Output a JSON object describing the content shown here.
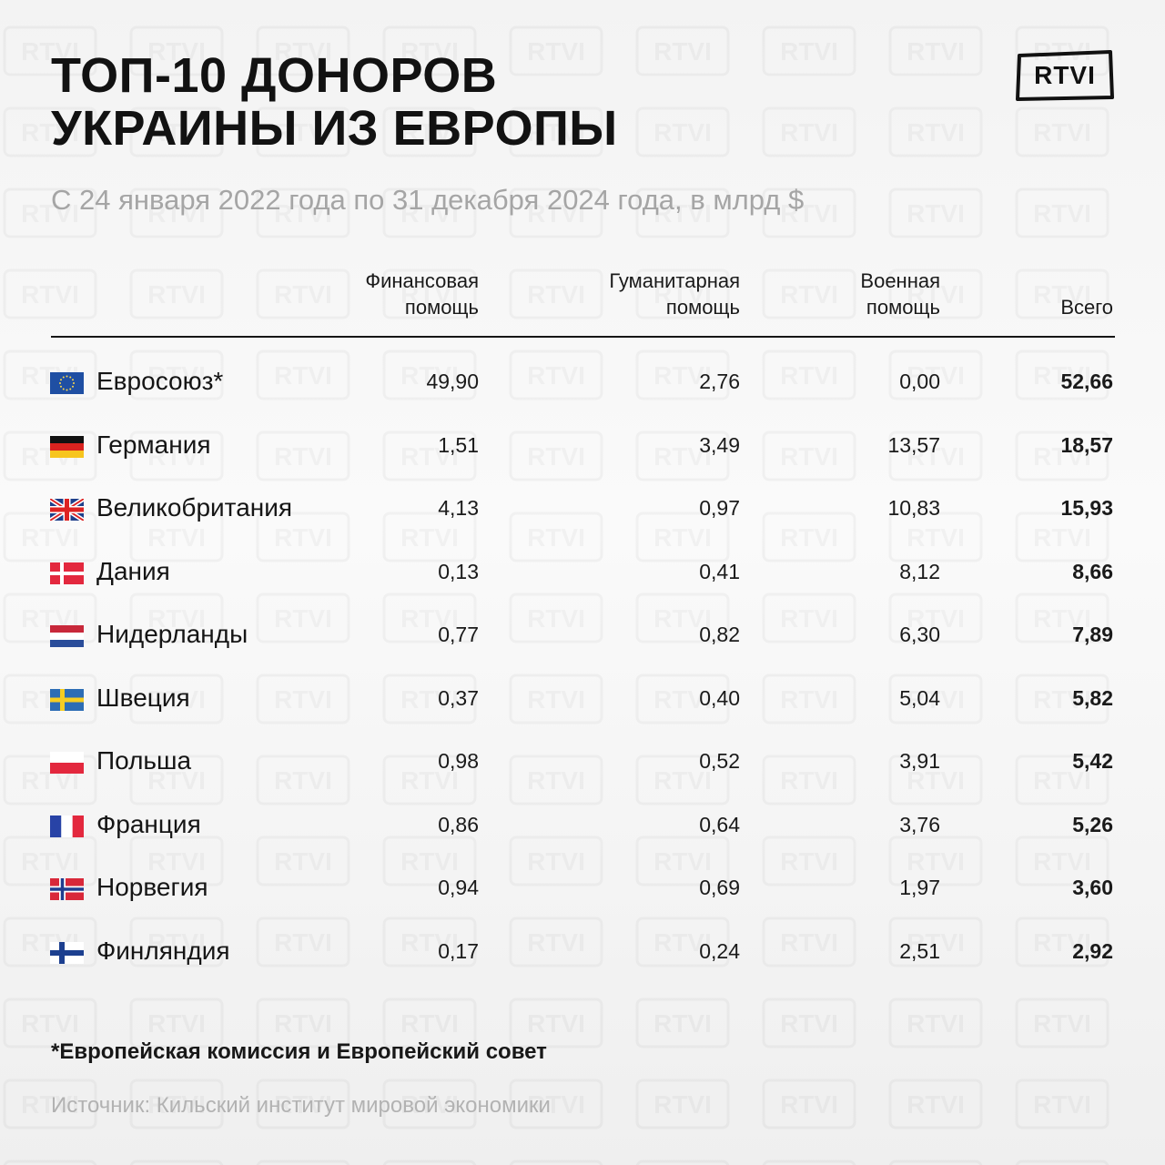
{
  "title": {
    "line1": "ТОП-10 ДОНОРОВ",
    "line2": "УКРАИНЫ ИЗ ЕВРОПЫ"
  },
  "subtitle": "С 24 января 2022 года по 31 декабря 2024 года, в млрд $",
  "brand": {
    "logo_text": "RTVI",
    "watermark_text": "RTVI"
  },
  "columns": [
    {
      "line1": "Финансовая",
      "line2": "помощь"
    },
    {
      "line1": "Гуманитарная",
      "line2": "помощь"
    },
    {
      "line1": "Военная",
      "line2": "помощь"
    },
    {
      "line1": "",
      "line2": "Всего"
    }
  ],
  "chart_data": {
    "type": "table",
    "columns": [
      "Финансовая помощь",
      "Гуманитарная помощь",
      "Военная помощь",
      "Всего"
    ],
    "rows": [
      {
        "country": "Евросоюз*",
        "flag": "eu-flag",
        "values": [
          "49,90",
          "2,76",
          "0,00",
          "52,66"
        ]
      },
      {
        "country": "Германия",
        "flag": "germany-flag",
        "values": [
          "1,51",
          "3,49",
          "13,57",
          "18,57"
        ]
      },
      {
        "country": "Великобритания",
        "flag": "uk-flag",
        "values": [
          "4,13",
          "0,97",
          "10,83",
          "15,93"
        ]
      },
      {
        "country": "Дания",
        "flag": "denmark-flag",
        "values": [
          "0,13",
          "0,41",
          "8,12",
          "8,66"
        ]
      },
      {
        "country": "Нидерланды",
        "flag": "netherlands-flag",
        "values": [
          "0,77",
          "0,82",
          "6,30",
          "7,89"
        ]
      },
      {
        "country": "Швеция",
        "flag": "sweden-flag",
        "values": [
          "0,37",
          "0,40",
          "5,04",
          "5,82"
        ]
      },
      {
        "country": "Польша",
        "flag": "poland-flag",
        "values": [
          "0,98",
          "0,52",
          "3,91",
          "5,42"
        ]
      },
      {
        "country": "Франция",
        "flag": "france-flag",
        "values": [
          "0,86",
          "0,64",
          "3,76",
          "5,26"
        ]
      },
      {
        "country": "Норвегия",
        "flag": "norway-flag",
        "values": [
          "0,94",
          "0,69",
          "1,97",
          "3,60"
        ]
      },
      {
        "country": "Финляндия",
        "flag": "finland-flag",
        "values": [
          "0,17",
          "0,24",
          "2,51",
          "2,92"
        ]
      }
    ]
  },
  "footnote": "*Европейская комиссия и Европейский совет",
  "source": "Источник: Кильский институт мировой экономики",
  "colors": {
    "text": "#121212",
    "subtitle": "#a5a5a5",
    "source": "#b2b2b2",
    "rule": "#161616"
  }
}
